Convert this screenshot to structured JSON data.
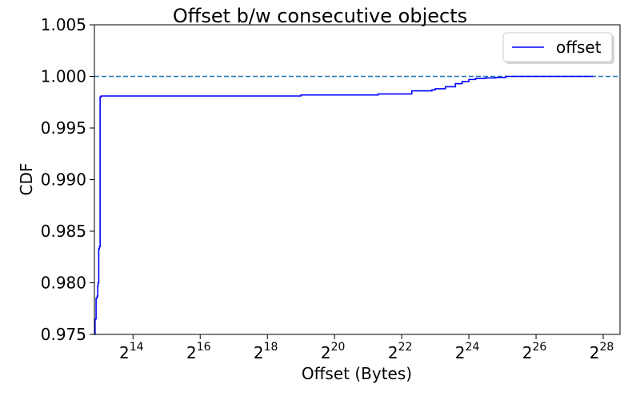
{
  "chart_data": {
    "type": "line",
    "title": "Offset b/w consecutive objects",
    "xlabel": "Offset (Bytes)",
    "ylabel": "CDF",
    "xscale": "log2",
    "x_tick_base": "2",
    "x_tick_exponents": [
      "14",
      "16",
      "18",
      "20",
      "22",
      "24",
      "26",
      "28"
    ],
    "xlim_log2": [
      12.85,
      28.5
    ],
    "ylim": [
      0.975,
      1.005
    ],
    "y_ticks": [
      "0.975",
      "0.980",
      "0.985",
      "0.990",
      "0.995",
      "1.000",
      "1.005"
    ],
    "legend": {
      "position": "top-right",
      "entries": [
        "offset"
      ]
    },
    "grid": false,
    "series": [
      {
        "name": "offset",
        "color": "#0000ff",
        "style": "solid",
        "step": true,
        "x_log2": [
          12.85,
          12.87,
          12.9,
          12.93,
          12.95,
          12.96,
          12.98,
          13.0,
          13.02,
          13.05,
          15,
          17,
          18.4,
          19,
          20,
          21.2,
          21.3,
          22.2,
          22.3,
          22.9,
          23.0,
          23.3,
          23.6,
          23.8,
          24.0,
          24.2,
          24.5,
          24.8,
          25.1,
          26,
          27,
          27.7
        ],
        "y": [
          0.975,
          0.9765,
          0.9785,
          0.9787,
          0.9797,
          0.98,
          0.9833,
          0.9835,
          0.998,
          0.9981,
          0.9981,
          0.9981,
          0.9981,
          0.9982,
          0.9982,
          0.9982,
          0.9983,
          0.9983,
          0.9986,
          0.9987,
          0.9988,
          0.999,
          0.9993,
          0.9995,
          0.9997,
          0.9998,
          0.99985,
          0.9999,
          1.0,
          1.0,
          1.0,
          1.0
        ]
      }
    ],
    "reference_lines": [
      {
        "axis": "y",
        "value": 1.0,
        "color": "#1f77b4",
        "style": "dashed"
      }
    ]
  }
}
